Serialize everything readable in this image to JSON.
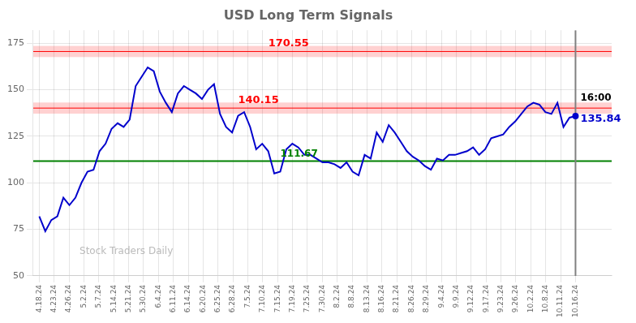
{
  "chart_data": {
    "type": "line",
    "title": "USD Long Term Signals",
    "color": "#0000cc",
    "x": [
      0,
      1,
      2,
      3,
      4,
      5,
      6,
      7,
      8,
      9,
      10,
      11,
      12,
      13,
      14,
      15,
      16,
      17,
      18,
      19,
      20,
      21,
      22,
      23,
      24,
      25,
      26,
      27,
      28,
      29,
      30,
      31,
      32,
      33,
      34,
      35,
      36,
      37,
      38,
      39,
      40,
      41,
      42,
      43,
      44,
      45,
      46,
      47,
      48,
      49,
      50,
      51,
      52,
      53,
      54,
      55,
      56,
      57,
      58,
      59,
      60,
      61,
      62,
      63,
      64,
      65,
      66,
      67,
      68,
      69,
      70,
      71,
      72,
      73,
      74,
      75,
      76,
      77,
      78,
      79,
      80,
      81,
      82,
      83,
      84,
      85,
      86,
      87,
      88,
      89
    ],
    "values": [
      82,
      74,
      80,
      82,
      92,
      88,
      92,
      100,
      106,
      107,
      117,
      121,
      129,
      132,
      130,
      134,
      152,
      157,
      162,
      160,
      149,
      143,
      138,
      148,
      152,
      150,
      148,
      145,
      150,
      153,
      137,
      130,
      127,
      136,
      138,
      130,
      118,
      121,
      117,
      105,
      106,
      118,
      121,
      119,
      115,
      115,
      113,
      111,
      111,
      110,
      108,
      111,
      106,
      104,
      115,
      113,
      127,
      122,
      131,
      127,
      122,
      117,
      114,
      112,
      109,
      107,
      113,
      112,
      115,
      115,
      116,
      117,
      119,
      115,
      118,
      124,
      125,
      126,
      130,
      133,
      137,
      141,
      143,
      142,
      138,
      137,
      143,
      130,
      135,
      135.84
    ],
    "xlim": [
      -1,
      95
    ],
    "xticks": [
      {
        "value": 0,
        "label": "4.18.24"
      },
      {
        "value": 2.4722,
        "label": "4.23.24"
      },
      {
        "value": 4.9444,
        "label": "4.26.24"
      },
      {
        "value": 7.4167,
        "label": "5.2.24"
      },
      {
        "value": 9.8889,
        "label": "5.7.24"
      },
      {
        "value": 12.3611,
        "label": "5.14.24"
      },
      {
        "value": 14.8333,
        "label": "5.21.24"
      },
      {
        "value": 17.3056,
        "label": "5.30.24"
      },
      {
        "value": 19.7778,
        "label": "6.4.24"
      },
      {
        "value": 22.25,
        "label": "6.11.24"
      },
      {
        "value": 24.7222,
        "label": "6.14.24"
      },
      {
        "value": 27.1944,
        "label": "6.20.24"
      },
      {
        "value": 29.6667,
        "label": "6.25.24"
      },
      {
        "value": 32.1389,
        "label": "6.28.24"
      },
      {
        "value": 34.6111,
        "label": "7.5.24"
      },
      {
        "value": 37.0833,
        "label": "7.10.24"
      },
      {
        "value": 39.5556,
        "label": "7.15.24"
      },
      {
        "value": 42.0278,
        "label": "7.19.24"
      },
      {
        "value": 44.5,
        "label": "7.25.24"
      },
      {
        "value": 46.9722,
        "label": "7.30.24"
      },
      {
        "value": 49.4444,
        "label": "8.2.24"
      },
      {
        "value": 51.9167,
        "label": "8.8.24"
      },
      {
        "value": 54.3889,
        "label": "8.13.24"
      },
      {
        "value": 56.8611,
        "label": "8.16.24"
      },
      {
        "value": 59.3333,
        "label": "8.21.24"
      },
      {
        "value": 61.8056,
        "label": "8.26.24"
      },
      {
        "value": 64.2778,
        "label": "8.29.24"
      },
      {
        "value": 66.75,
        "label": "9.4.24"
      },
      {
        "value": 69.2222,
        "label": "9.9.24"
      },
      {
        "value": 71.6944,
        "label": "9.12.24"
      },
      {
        "value": 74.1667,
        "label": "9.17.24"
      },
      {
        "value": 76.6389,
        "label": "9.23.24"
      },
      {
        "value": 79.1111,
        "label": "9.26.24"
      },
      {
        "value": 81.5833,
        "label": "10.2.24"
      },
      {
        "value": 84.0556,
        "label": "10.8.24"
      },
      {
        "value": 86.5278,
        "label": "10.11.24"
      },
      {
        "value": 89,
        "label": "10.16.24"
      }
    ],
    "ylim": [
      50,
      182
    ],
    "yticks": [
      50,
      75,
      100,
      125,
      150,
      175
    ],
    "grid": true,
    "reference_lines": [
      {
        "axis": "y",
        "value": 170.55,
        "color": "red",
        "band": [
          167.55,
          173.55
        ],
        "label": "170.55"
      },
      {
        "axis": "y",
        "value": 140.15,
        "color": "red",
        "band": [
          137.15,
          143.15
        ],
        "label": "140.15"
      },
      {
        "axis": "y",
        "value": 111.67,
        "color": "green",
        "label": "111.67"
      },
      {
        "axis": "x",
        "value": 89,
        "color": "gray"
      }
    ],
    "last_point": {
      "x": 89,
      "value": 135.84,
      "label": "135.84",
      "time_label": "16:00"
    },
    "watermark": "Stock Traders Daily"
  }
}
